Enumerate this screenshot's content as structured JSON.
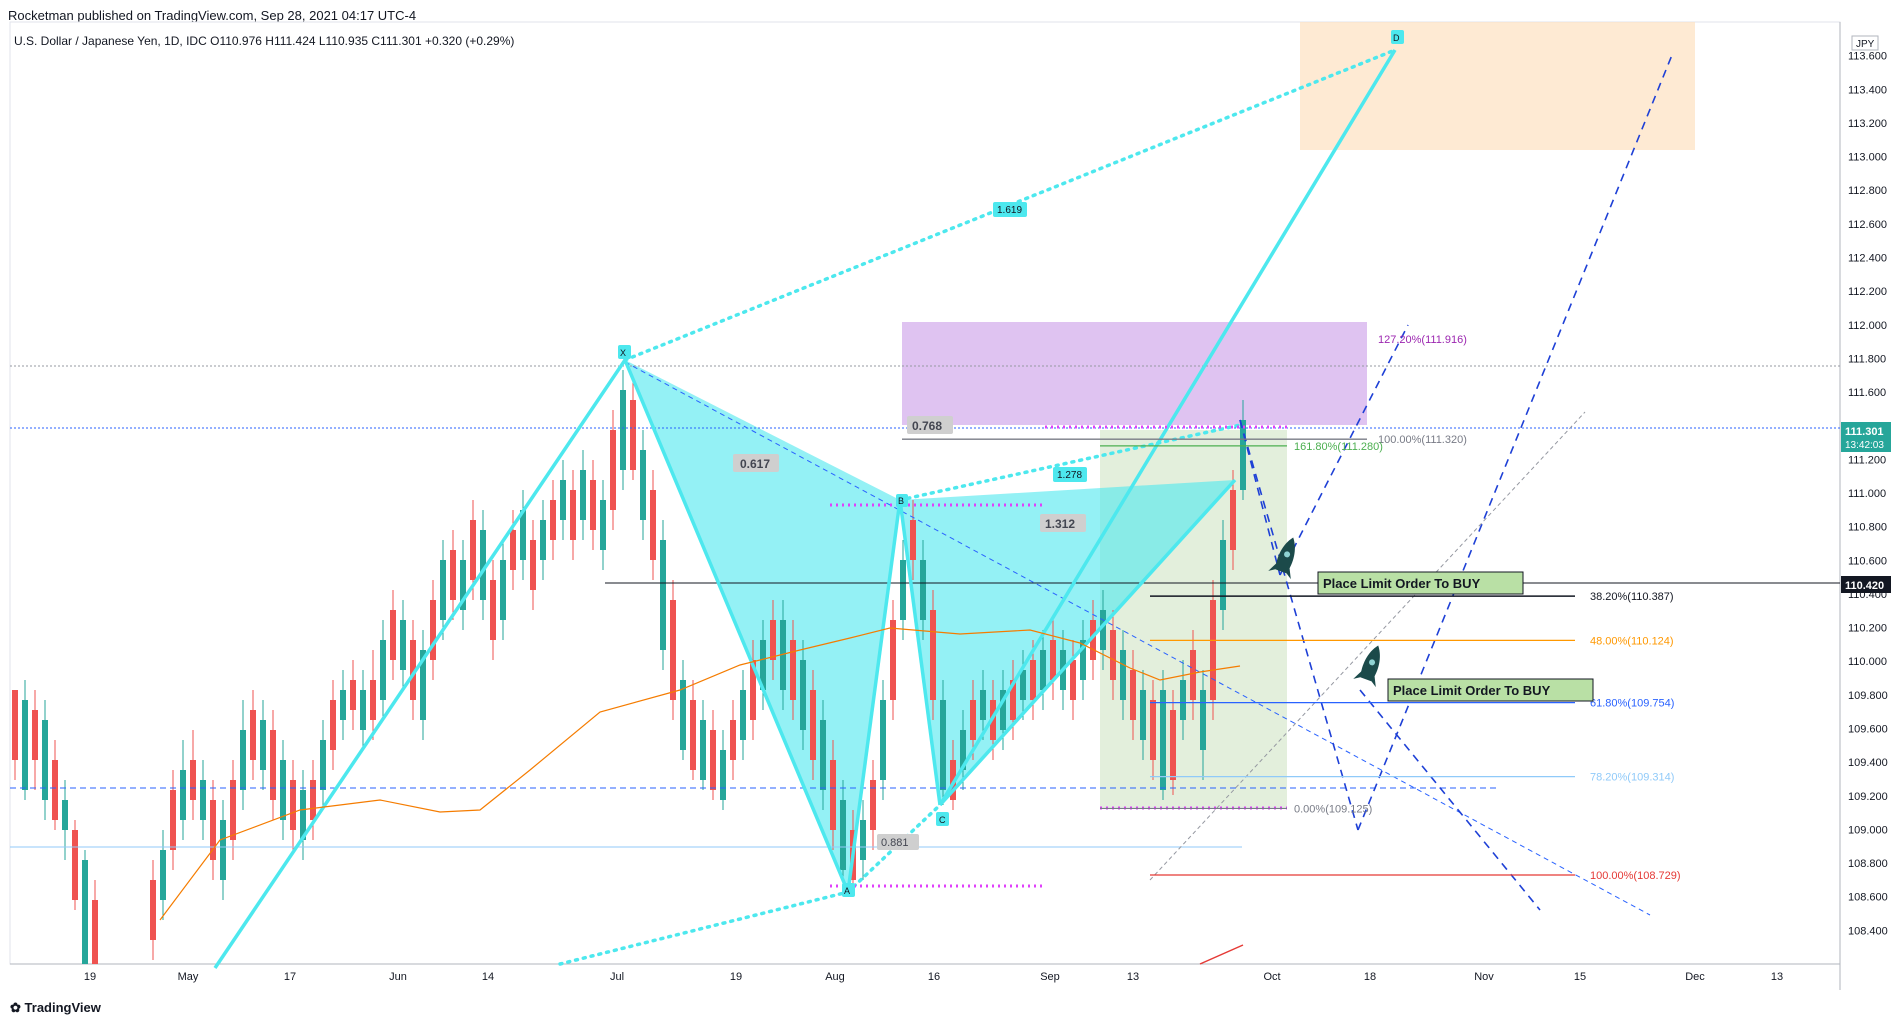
{
  "header": {
    "publisher": "Rocketman published on TradingView.com, Sep 28, 2021 04:17 UTC-4"
  },
  "symbol": {
    "name": "U.S. Dollar / Japanese Yen, 1D, IDC",
    "ohlc": "O110.976  H111.424  L110.935  C111.301  +0.320 (+0.29%)"
  },
  "footer": {
    "logo": "TradingView"
  },
  "chart_data": {
    "type": "candlestick",
    "currency": "JPY",
    "ylim": [
      108.2,
      113.8
    ],
    "y_ticks": [
      "108.400",
      "108.600",
      "108.800",
      "109.000",
      "109.200",
      "109.400",
      "109.600",
      "109.800",
      "110.000",
      "110.200",
      "110.400",
      "110.600",
      "110.800",
      "111.000",
      "111.200",
      "111.400",
      "111.600",
      "111.800",
      "112.000",
      "112.200",
      "112.400",
      "112.600",
      "112.800",
      "113.000",
      "113.200",
      "113.400",
      "113.600"
    ],
    "x_ticks": [
      "19",
      "May",
      "17",
      "Jun",
      "14",
      "Jul",
      "19",
      "Aug",
      "16",
      "Sep",
      "13",
      "Oct",
      "18",
      "Nov",
      "15",
      "Dec",
      "13"
    ],
    "last_price": {
      "value": "111.301",
      "countdown": "13:42:03",
      "color": "#26a69a"
    },
    "crosshair_price": {
      "value": "110.420"
    },
    "fib_levels": [
      {
        "label": "127.20%(111.916)",
        "value": 111.916,
        "color": "#9c27b0"
      },
      {
        "label": "100.00%(111.320)",
        "value": 111.32,
        "color": "#787b86"
      },
      {
        "label": "161.80%(111.280)",
        "value": 111.28,
        "color": "#4caf50"
      },
      {
        "label": "38.20%(110.387)",
        "value": 110.387,
        "color": "#131722"
      },
      {
        "label": "48.00%(110.124)",
        "value": 110.124,
        "color": "#ff9800"
      },
      {
        "label": "61.80%(109.754)",
        "value": 109.754,
        "color": "#2962ff"
      },
      {
        "label": "78.20%(109.314)",
        "value": 109.314,
        "color": "#90caf9"
      },
      {
        "label": "0.00%(109.125)",
        "value": 109.125,
        "color": "#787b86"
      },
      {
        "label": "100.00%(108.729)",
        "value": 108.729,
        "color": "#e53935"
      }
    ],
    "ratios": [
      "0.617",
      "1.312",
      "0.768",
      "0.881",
      "1.278",
      "1.619"
    ],
    "pattern_points": [
      "X",
      "A",
      "B",
      "C",
      "D"
    ],
    "annotations": [
      "Place Limit Order To BUY",
      "Place Limit Order To BUY"
    ],
    "colors": {
      "up": "#26a69a",
      "down": "#ef5350",
      "harmonic": "#4de8ee",
      "ma": "#f57c00",
      "target_zone": "#fde3c4",
      "purple_zone": "#d9b9ef",
      "green_zone": "#dcebd3"
    }
  }
}
